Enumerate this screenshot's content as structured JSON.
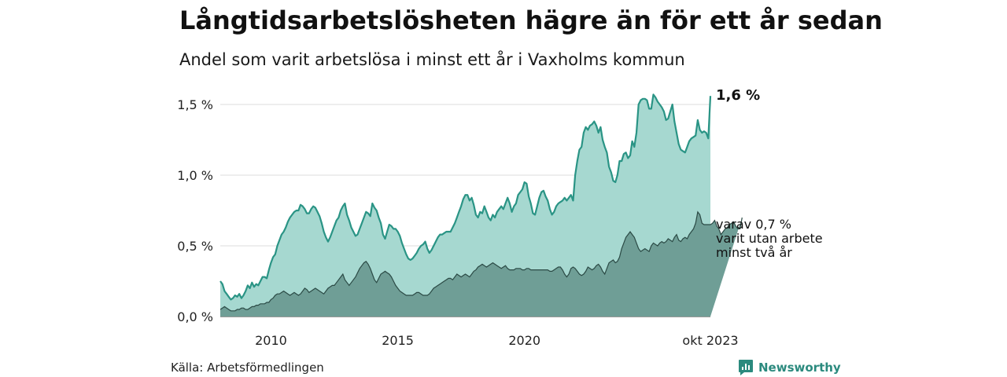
{
  "title": "Långtidsarbetslösheten hägre än för ett år sedan",
  "subtitle": "Andel som varit arbetslösa i minst ett år i Vaxholms kommun",
  "source": "Källa: Arbetsförmedlingen",
  "brand": {
    "name": "Newsworthy",
    "icon": "bar-chart-speech-bubble-icon",
    "color": "#2b8a7e"
  },
  "colors": {
    "one_year_area": "#a6d8d0",
    "one_year_line": "#2a9485",
    "two_year_area": "#6f9e96",
    "two_year_line": "#2b4a45",
    "grid": "#dddddd"
  },
  "chart_data": {
    "type": "area",
    "title": "Långtidsarbetslösheten hägre än för ett år sedan",
    "subtitle": "Andel som varit arbetslösa i minst ett år i Vaxholms kommun",
    "xlabel": "",
    "ylabel": "",
    "x_start": "2008-01",
    "x_end": "2023-10",
    "x_ticks": [
      "2010",
      "2015",
      "2020",
      "okt 2023"
    ],
    "y_ticks": [
      "0,0 %",
      "0,5 %",
      "1,0 %",
      "1,5 %"
    ],
    "ylim": [
      0,
      1.65
    ],
    "grid": true,
    "annotations": {
      "series_1_end": "1,6 %",
      "series_2_end": [
        "varav 0,7 %",
        "varit utan arbete",
        "minst två år"
      ]
    },
    "series": [
      {
        "name": "minst ett år",
        "values": [
          0.25,
          0.23,
          0.18,
          0.16,
          0.14,
          0.12,
          0.13,
          0.15,
          0.14,
          0.16,
          0.13,
          0.15,
          0.18,
          0.22,
          0.2,
          0.24,
          0.21,
          0.23,
          0.22,
          0.25,
          0.28,
          0.28,
          0.27,
          0.33,
          0.38,
          0.42,
          0.44,
          0.5,
          0.54,
          0.58,
          0.6,
          0.63,
          0.67,
          0.7,
          0.72,
          0.74,
          0.75,
          0.75,
          0.79,
          0.78,
          0.76,
          0.73,
          0.73,
          0.76,
          0.78,
          0.77,
          0.74,
          0.71,
          0.66,
          0.6,
          0.56,
          0.53,
          0.56,
          0.6,
          0.64,
          0.68,
          0.7,
          0.75,
          0.78,
          0.8,
          0.72,
          0.68,
          0.63,
          0.6,
          0.57,
          0.58,
          0.62,
          0.66,
          0.7,
          0.74,
          0.73,
          0.71,
          0.8,
          0.77,
          0.75,
          0.7,
          0.66,
          0.58,
          0.55,
          0.6,
          0.65,
          0.64,
          0.62,
          0.62,
          0.6,
          0.57,
          0.52,
          0.48,
          0.44,
          0.41,
          0.4,
          0.41,
          0.43,
          0.45,
          0.48,
          0.5,
          0.51,
          0.53,
          0.48,
          0.45,
          0.47,
          0.5,
          0.53,
          0.56,
          0.58,
          0.58,
          0.59,
          0.6,
          0.6,
          0.6,
          0.63,
          0.66,
          0.7,
          0.74,
          0.78,
          0.83,
          0.86,
          0.86,
          0.82,
          0.84,
          0.79,
          0.72,
          0.7,
          0.74,
          0.73,
          0.78,
          0.74,
          0.7,
          0.68,
          0.72,
          0.7,
          0.74,
          0.76,
          0.78,
          0.76,
          0.8,
          0.84,
          0.8,
          0.74,
          0.78,
          0.8,
          0.86,
          0.88,
          0.9,
          0.95,
          0.94,
          0.85,
          0.8,
          0.73,
          0.72,
          0.78,
          0.84,
          0.88,
          0.89,
          0.85,
          0.82,
          0.76,
          0.72,
          0.74,
          0.78,
          0.8,
          0.81,
          0.82,
          0.84,
          0.82,
          0.84,
          0.86,
          0.82,
          1.0,
          1.1,
          1.18,
          1.2,
          1.3,
          1.34,
          1.32,
          1.35,
          1.36,
          1.38,
          1.35,
          1.3,
          1.34,
          1.25,
          1.2,
          1.16,
          1.06,
          1.02,
          0.96,
          0.95,
          1.0,
          1.1,
          1.1,
          1.15,
          1.16,
          1.12,
          1.14,
          1.24,
          1.2,
          1.3,
          1.5,
          1.53,
          1.54,
          1.54,
          1.53,
          1.47,
          1.47,
          1.57,
          1.55,
          1.52,
          1.5,
          1.48,
          1.45,
          1.39,
          1.4,
          1.45,
          1.5,
          1.38,
          1.3,
          1.22,
          1.18,
          1.17,
          1.16,
          1.2,
          1.24,
          1.26,
          1.27,
          1.28,
          1.39,
          1.32,
          1.3,
          1.31,
          1.3,
          1.26,
          1.56
        ]
      },
      {
        "name": "varav minst två år",
        "values": [
          0.05,
          0.06,
          0.07,
          0.06,
          0.05,
          0.04,
          0.04,
          0.04,
          0.05,
          0.05,
          0.06,
          0.06,
          0.05,
          0.05,
          0.06,
          0.07,
          0.07,
          0.08,
          0.08,
          0.09,
          0.09,
          0.09,
          0.1,
          0.1,
          0.12,
          0.13,
          0.15,
          0.16,
          0.16,
          0.17,
          0.18,
          0.17,
          0.16,
          0.15,
          0.16,
          0.17,
          0.16,
          0.15,
          0.16,
          0.18,
          0.2,
          0.19,
          0.17,
          0.18,
          0.19,
          0.2,
          0.19,
          0.18,
          0.17,
          0.16,
          0.18,
          0.2,
          0.21,
          0.22,
          0.22,
          0.24,
          0.26,
          0.28,
          0.3,
          0.26,
          0.24,
          0.22,
          0.24,
          0.26,
          0.28,
          0.31,
          0.34,
          0.36,
          0.38,
          0.39,
          0.37,
          0.34,
          0.3,
          0.26,
          0.24,
          0.27,
          0.3,
          0.31,
          0.32,
          0.31,
          0.3,
          0.28,
          0.25,
          0.22,
          0.2,
          0.18,
          0.17,
          0.16,
          0.15,
          0.15,
          0.15,
          0.15,
          0.16,
          0.17,
          0.17,
          0.16,
          0.15,
          0.15,
          0.15,
          0.16,
          0.18,
          0.2,
          0.21,
          0.22,
          0.23,
          0.24,
          0.25,
          0.26,
          0.27,
          0.27,
          0.26,
          0.28,
          0.3,
          0.29,
          0.28,
          0.29,
          0.3,
          0.29,
          0.28,
          0.3,
          0.32,
          0.33,
          0.35,
          0.36,
          0.37,
          0.36,
          0.35,
          0.36,
          0.37,
          0.38,
          0.37,
          0.36,
          0.35,
          0.34,
          0.35,
          0.36,
          0.34,
          0.33,
          0.33,
          0.33,
          0.34,
          0.34,
          0.34,
          0.33,
          0.33,
          0.34,
          0.34,
          0.33,
          0.33,
          0.33,
          0.33,
          0.33,
          0.33,
          0.33,
          0.33,
          0.33,
          0.32,
          0.32,
          0.33,
          0.34,
          0.35,
          0.35,
          0.33,
          0.3,
          0.28,
          0.3,
          0.34,
          0.35,
          0.34,
          0.32,
          0.3,
          0.29,
          0.3,
          0.32,
          0.35,
          0.34,
          0.33,
          0.34,
          0.36,
          0.37,
          0.35,
          0.32,
          0.3,
          0.34,
          0.38,
          0.39,
          0.4,
          0.38,
          0.39,
          0.42,
          0.48,
          0.52,
          0.56,
          0.58,
          0.6,
          0.58,
          0.56,
          0.52,
          0.48,
          0.46,
          0.47,
          0.48,
          0.47,
          0.46,
          0.5,
          0.52,
          0.51,
          0.5,
          0.52,
          0.53,
          0.52,
          0.53,
          0.55,
          0.54,
          0.53,
          0.56,
          0.58,
          0.54,
          0.53,
          0.55,
          0.56,
          0.55,
          0.58,
          0.6,
          0.62,
          0.66,
          0.74,
          0.72,
          0.66,
          0.65,
          0.65,
          0.65,
          0.65,
          0.66,
          0.68,
          0.64,
          0.62,
          0.58,
          0.6,
          0.62,
          0.63,
          0.65,
          0.66,
          0.67,
          0.64,
          0.62,
          0.62,
          0.7
        ]
      }
    ]
  }
}
